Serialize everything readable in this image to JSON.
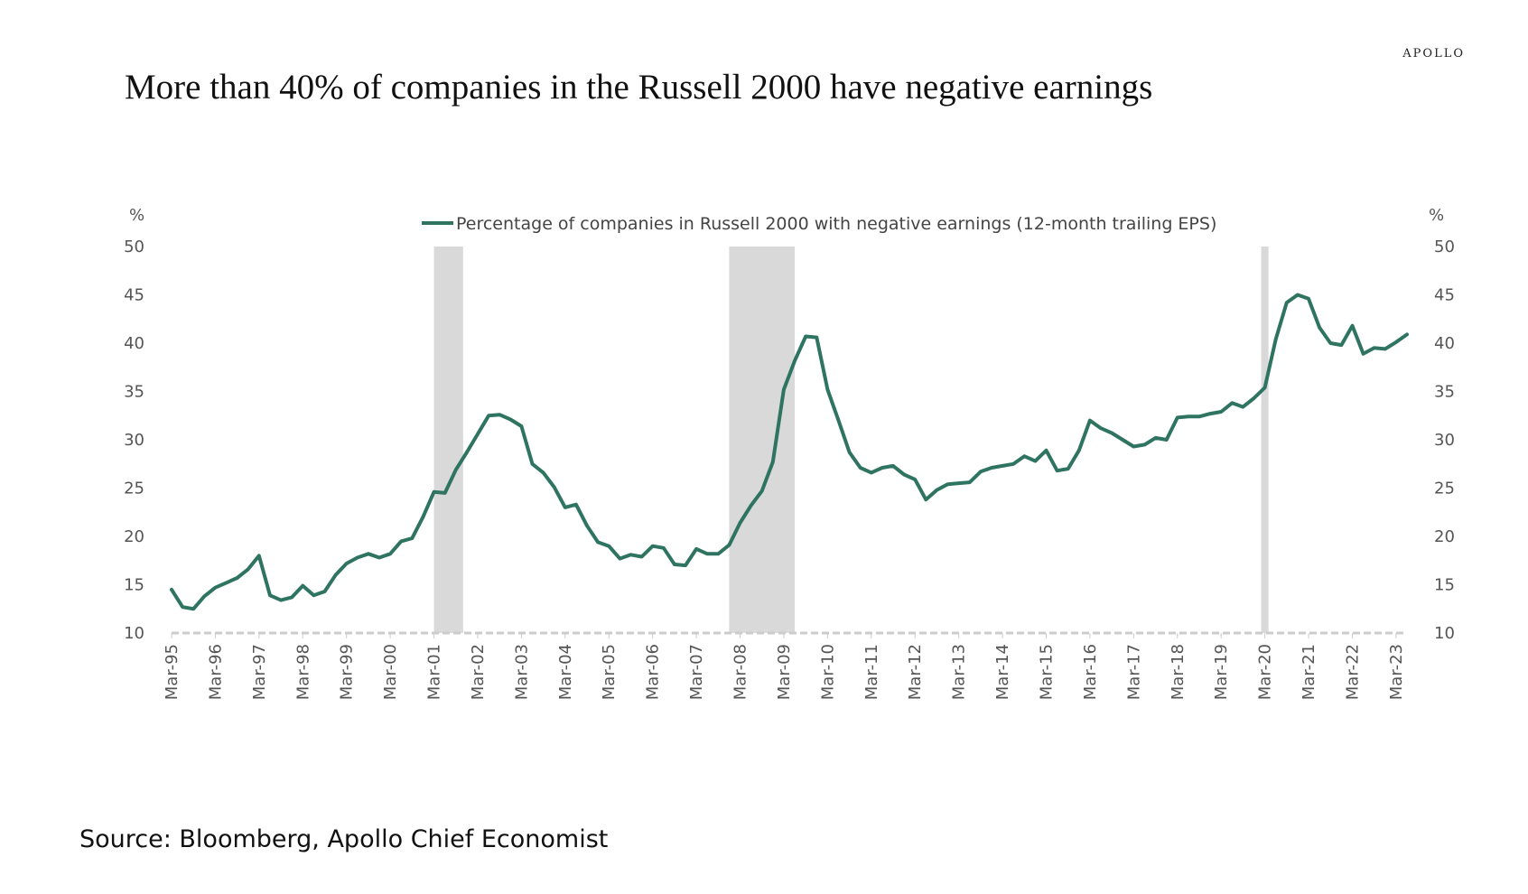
{
  "brand": "APOLLO",
  "title": "More than 40% of companies in the Russell 2000 have negative earnings",
  "source": "Source: Bloomberg, Apollo Chief Economist",
  "colors": {
    "line": "#2e7461",
    "recession": "#d9d9d9",
    "axis": "#cccccc"
  },
  "chart_data": {
    "type": "line",
    "title": "More than 40% of companies in the Russell 2000 have negative earnings",
    "ylabel_left": "%",
    "ylabel_right": "%",
    "ylim": [
      10,
      50
    ],
    "yticks": [
      10,
      15,
      20,
      25,
      30,
      35,
      40,
      45,
      50
    ],
    "xlim": [
      "1995-03",
      "2023-06"
    ],
    "xticks": [
      "Mar-95",
      "Mar-96",
      "Mar-97",
      "Mar-98",
      "Mar-99",
      "Mar-00",
      "Mar-01",
      "Mar-02",
      "Mar-03",
      "Mar-04",
      "Mar-05",
      "Mar-06",
      "Mar-07",
      "Mar-08",
      "Mar-09",
      "Mar-10",
      "Mar-11",
      "Mar-12",
      "Mar-13",
      "Mar-14",
      "Mar-15",
      "Mar-16",
      "Mar-17",
      "Mar-18",
      "Mar-19",
      "Mar-20",
      "Mar-21",
      "Mar-22",
      "Mar-23"
    ],
    "legend_position": "top-center",
    "grid": false,
    "recessions": [
      {
        "start": "2001-03",
        "end": "2001-11"
      },
      {
        "start": "2007-12",
        "end": "2009-06"
      },
      {
        "start": "2020-02",
        "end": "2020-04"
      }
    ],
    "series": [
      {
        "name": "Percentage of companies in Russell 2000 with negative earnings (12-month trailing EPS)",
        "color": "#2e7461",
        "points": [
          [
            "1995-03",
            14.5
          ],
          [
            "1995-06",
            12.7
          ],
          [
            "1995-09",
            12.5
          ],
          [
            "1995-12",
            13.8
          ],
          [
            "1996-03",
            14.7
          ],
          [
            "1996-06",
            15.2
          ],
          [
            "1996-09",
            15.7
          ],
          [
            "1996-12",
            16.6
          ],
          [
            "1997-03",
            18.0
          ],
          [
            "1997-06",
            13.9
          ],
          [
            "1997-09",
            13.4
          ],
          [
            "1997-12",
            13.7
          ],
          [
            "1998-03",
            14.9
          ],
          [
            "1998-06",
            13.9
          ],
          [
            "1998-09",
            14.3
          ],
          [
            "1998-12",
            16.0
          ],
          [
            "1999-03",
            17.2
          ],
          [
            "1999-06",
            17.8
          ],
          [
            "1999-09",
            18.2
          ],
          [
            "1999-12",
            17.8
          ],
          [
            "2000-03",
            18.2
          ],
          [
            "2000-06",
            19.5
          ],
          [
            "2000-09",
            19.8
          ],
          [
            "2000-12",
            22.0
          ],
          [
            "2001-03",
            24.6
          ],
          [
            "2001-06",
            24.5
          ],
          [
            "2001-09",
            26.9
          ],
          [
            "2001-12",
            28.7
          ],
          [
            "2002-03",
            30.6
          ],
          [
            "2002-06",
            32.5
          ],
          [
            "2002-09",
            32.6
          ],
          [
            "2002-12",
            32.1
          ],
          [
            "2003-03",
            31.4
          ],
          [
            "2003-06",
            27.5
          ],
          [
            "2003-09",
            26.6
          ],
          [
            "2003-12",
            25.1
          ],
          [
            "2004-03",
            23.0
          ],
          [
            "2004-06",
            23.3
          ],
          [
            "2004-09",
            21.1
          ],
          [
            "2004-12",
            19.4
          ],
          [
            "2005-03",
            19.0
          ],
          [
            "2005-06",
            17.7
          ],
          [
            "2005-09",
            18.1
          ],
          [
            "2005-12",
            17.9
          ],
          [
            "2006-03",
            19.0
          ],
          [
            "2006-06",
            18.8
          ],
          [
            "2006-09",
            17.1
          ],
          [
            "2006-12",
            17.0
          ],
          [
            "2007-03",
            18.7
          ],
          [
            "2007-06",
            18.2
          ],
          [
            "2007-09",
            18.2
          ],
          [
            "2007-12",
            19.1
          ],
          [
            "2008-03",
            21.4
          ],
          [
            "2008-06",
            23.2
          ],
          [
            "2008-09",
            24.7
          ],
          [
            "2008-12",
            27.7
          ],
          [
            "2009-03",
            35.2
          ],
          [
            "2009-06",
            38.2
          ],
          [
            "2009-09",
            40.7
          ],
          [
            "2009-12",
            40.6
          ],
          [
            "2010-03",
            35.2
          ],
          [
            "2010-06",
            32.0
          ],
          [
            "2010-09",
            28.7
          ],
          [
            "2010-12",
            27.1
          ],
          [
            "2011-03",
            26.6
          ],
          [
            "2011-06",
            27.1
          ],
          [
            "2011-09",
            27.3
          ],
          [
            "2011-12",
            26.4
          ],
          [
            "2012-03",
            25.9
          ],
          [
            "2012-06",
            23.8
          ],
          [
            "2012-09",
            24.8
          ],
          [
            "2012-12",
            25.4
          ],
          [
            "2013-03",
            25.5
          ],
          [
            "2013-06",
            25.6
          ],
          [
            "2013-09",
            26.7
          ],
          [
            "2013-12",
            27.1
          ],
          [
            "2014-03",
            27.3
          ],
          [
            "2014-06",
            27.5
          ],
          [
            "2014-09",
            28.3
          ],
          [
            "2014-12",
            27.8
          ],
          [
            "2015-03",
            28.9
          ],
          [
            "2015-06",
            26.8
          ],
          [
            "2015-09",
            27.0
          ],
          [
            "2015-12",
            28.9
          ],
          [
            "2016-03",
            32.0
          ],
          [
            "2016-06",
            31.2
          ],
          [
            "2016-09",
            30.7
          ],
          [
            "2016-12",
            30.0
          ],
          [
            "2017-03",
            29.3
          ],
          [
            "2017-06",
            29.5
          ],
          [
            "2017-09",
            30.2
          ],
          [
            "2017-12",
            30.0
          ],
          [
            "2018-03",
            32.3
          ],
          [
            "2018-06",
            32.4
          ],
          [
            "2018-09",
            32.4
          ],
          [
            "2018-12",
            32.7
          ],
          [
            "2019-03",
            32.9
          ],
          [
            "2019-06",
            33.8
          ],
          [
            "2019-09",
            33.4
          ],
          [
            "2019-12",
            34.3
          ],
          [
            "2020-03",
            35.4
          ],
          [
            "2020-06",
            40.4
          ],
          [
            "2020-09",
            44.2
          ],
          [
            "2020-12",
            45.0
          ],
          [
            "2021-03",
            44.6
          ],
          [
            "2021-06",
            41.6
          ],
          [
            "2021-09",
            40.0
          ],
          [
            "2021-12",
            39.8
          ],
          [
            "2022-03",
            41.8
          ],
          [
            "2022-06",
            38.9
          ],
          [
            "2022-09",
            39.5
          ],
          [
            "2022-12",
            39.4
          ],
          [
            "2023-03",
            40.1
          ],
          [
            "2023-06",
            40.9
          ]
        ]
      }
    ]
  }
}
